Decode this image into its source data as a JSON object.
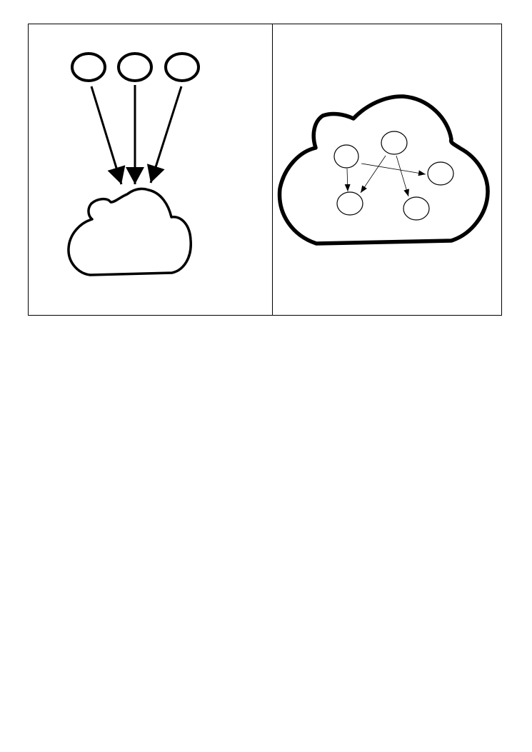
{
  "diagram": {
    "panels": [
      {
        "id": "left",
        "nodes": [
          {
            "id": "a"
          },
          {
            "id": "b"
          },
          {
            "id": "c"
          }
        ],
        "edges": [
          {
            "from": "a",
            "to": "cloud"
          },
          {
            "from": "b",
            "to": "cloud"
          },
          {
            "from": "c",
            "to": "cloud"
          }
        ]
      },
      {
        "id": "right",
        "nodes": [
          {
            "id": "n1"
          },
          {
            "id": "n2"
          },
          {
            "id": "n3"
          },
          {
            "id": "n4"
          },
          {
            "id": "n5"
          }
        ],
        "edges": [
          {
            "from": "n1",
            "to": "n4"
          },
          {
            "from": "n1",
            "to": "n3"
          },
          {
            "from": "n2",
            "to": "n4"
          },
          {
            "from": "n2",
            "to": "n5"
          }
        ]
      }
    ],
    "stroke_color": "#000000",
    "background": "#ffffff"
  }
}
